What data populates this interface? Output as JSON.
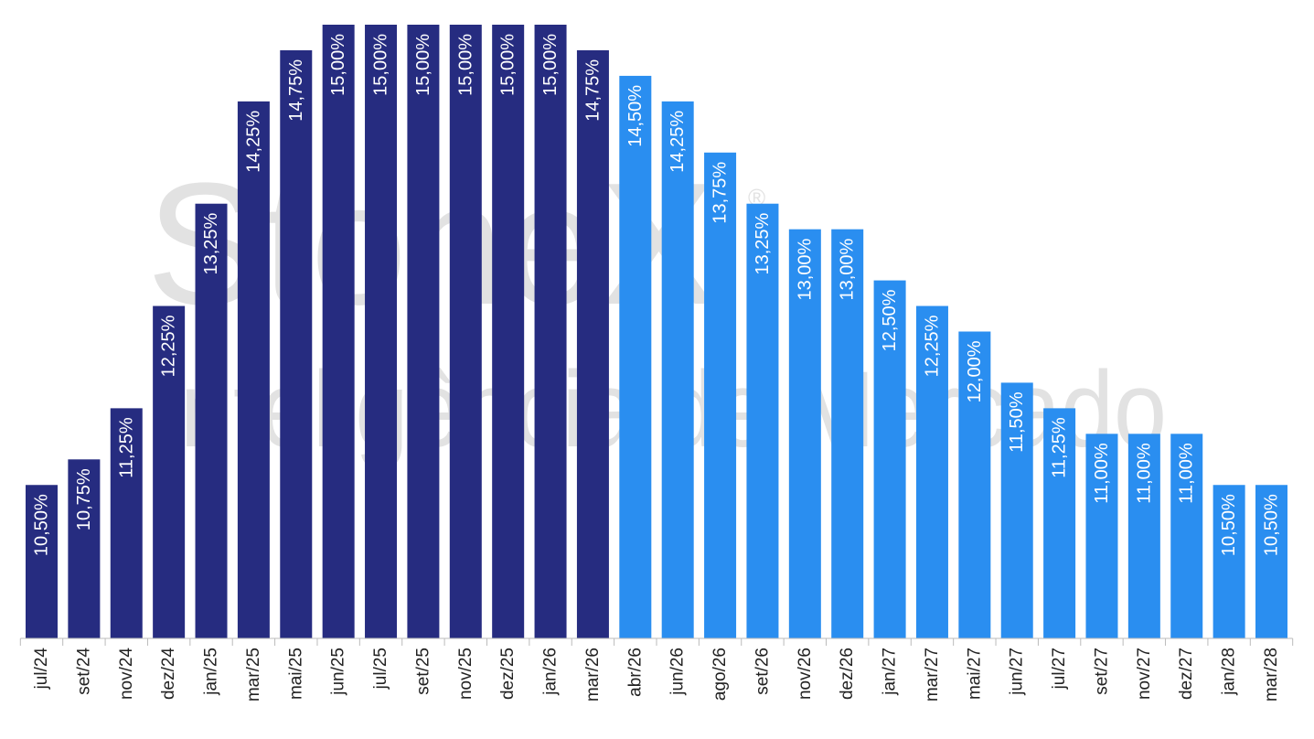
{
  "chart_data": {
    "type": "bar",
    "watermark": [
      "StoneX",
      "®",
      "Inteligência de Mercado"
    ],
    "categories": [
      "jul/24",
      "set/24",
      "nov/24",
      "dez/24",
      "jan/25",
      "mar/25",
      "mai/25",
      "jun/25",
      "jul/25",
      "set/25",
      "nov/25",
      "dez/25",
      "jan/26",
      "mar/26",
      "abr/26",
      "jun/26",
      "ago/26",
      "set/26",
      "nov/26",
      "dez/26",
      "jan/27",
      "mar/27",
      "mai/27",
      "jun/27",
      "jul/27",
      "set/27",
      "nov/27",
      "dez/27",
      "jan/28",
      "mar/28"
    ],
    "values": [
      10.5,
      10.75,
      11.25,
      12.25,
      13.25,
      14.25,
      14.75,
      15,
      15,
      15,
      15,
      15,
      15,
      14.75,
      14.5,
      14.25,
      13.75,
      13.25,
      13,
      13,
      12.5,
      12.25,
      12,
      11.5,
      11.25,
      11,
      11,
      11,
      10.5,
      10.5
    ],
    "value_labels": [
      "10,50%",
      "10,75%",
      "11,25%",
      "12,25%",
      "13,25%",
      "14,25%",
      "14,75%",
      "15,00%",
      "15,00%",
      "15,00%",
      "15,00%",
      "15,00%",
      "15,00%",
      "14,75%",
      "14,50%",
      "14,25%",
      "13,75%",
      "13,25%",
      "13,00%",
      "13,00%",
      "12,50%",
      "12,25%",
      "12,00%",
      "11,50%",
      "11,25%",
      "11,00%",
      "11,00%",
      "11,00%",
      "10,50%",
      "10,50%"
    ],
    "colors": [
      "#262c80",
      "#262c80",
      "#262c80",
      "#262c80",
      "#262c80",
      "#262c80",
      "#262c80",
      "#262c80",
      "#262c80",
      "#262c80",
      "#262c80",
      "#262c80",
      "#262c80",
      "#262c80",
      "#2a8ef0",
      "#2a8ef0",
      "#2a8ef0",
      "#2a8ef0",
      "#2a8ef0",
      "#2a8ef0",
      "#2a8ef0",
      "#2a8ef0",
      "#2a8ef0",
      "#2a8ef0",
      "#2a8ef0",
      "#2a8ef0",
      "#2a8ef0",
      "#2a8ef0",
      "#2a8ef0",
      "#2a8ef0"
    ],
    "ylim": [
      9,
      15
    ]
  }
}
